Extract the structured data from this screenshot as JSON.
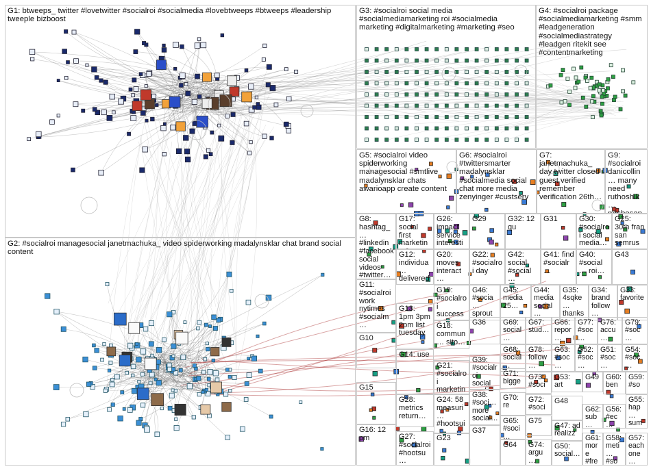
{
  "groups": [
    {
      "id": "G1",
      "text": "G1: btweeps_ twitter #lovetwitter #socialroi #socialmedia #lovebtweeps #btweeps #leadership tweeple bizboost"
    },
    {
      "id": "G2",
      "text": "G2: #socialroi managesocial janetmachuka_ video spiderworking madalynsklar chat brand social content"
    },
    {
      "id": "G3",
      "text": "G3: #socialroi social media #socialmediamarketing roi #socialmedia marketing #digitalmarketing #marketing #seo"
    },
    {
      "id": "G4",
      "text": "G4: #socialroi package #socialmediamarketing #smm #leadgeneration #socialmediastrategy #leadgen ritekit see #contentmarketing"
    },
    {
      "id": "G5",
      "text": "G5: #socialroi video spiderworking managesocial #smtlive madalynsklar chats awarioapp create content"
    },
    {
      "id": "G6",
      "text": "G6: #socialroi #twittersmarter madalynsklar #socialmedia social chat more media zenyinger #custserv"
    },
    {
      "id": "G7",
      "text": "G7: janetmachuka_ day twitter closed guest verified remember verification 26th…"
    },
    {
      "id": "G9",
      "text": "G9: #socialroi danicollin… many need ruthoshik… mrsbosan…"
    },
    {
      "id": "G8",
      "text": "G8: hashtag_… #linkedin #facebook social videos #twitter…"
    },
    {
      "id": "G17",
      "text": "G17: social first marketing 2x…"
    },
    {
      "id": "G26",
      "text": "G26: impact service interesti…"
    },
    {
      "id": "G29",
      "text": "G29"
    },
    {
      "id": "G32",
      "text": "G32: 12 qu"
    },
    {
      "id": "G31",
      "text": "G31"
    },
    {
      "id": "G30",
      "text": "G30: #socialroi social media…"
    },
    {
      "id": "G25",
      "text": "G25: 30th fran san semrus…"
    },
    {
      "id": "G12",
      "text": "G12: individua… delivered support"
    },
    {
      "id": "G20",
      "text": "G20: moves interact…"
    },
    {
      "id": "G22",
      "text": "G22: #socialroi day"
    },
    {
      "id": "G42",
      "text": "G42: social #social…"
    },
    {
      "id": "G41",
      "text": "G41: find #socialr…"
    },
    {
      "id": "G40",
      "text": "G40: #social… roi…"
    },
    {
      "id": "G43",
      "text": "G43"
    },
    {
      "id": "G11",
      "text": "G11: #socialroi work nytimes #socialm…"
    },
    {
      "id": "G19",
      "text": "G19: #socialroi success…"
    },
    {
      "id": "G46",
      "text": "G46: #socia… sprout…"
    },
    {
      "id": "G45",
      "text": "G45: media 25…"
    },
    {
      "id": "G44",
      "text": "G44: media social…"
    },
    {
      "id": "G35",
      "text": "G35: 4sqke… thanks…"
    },
    {
      "id": "G34",
      "text": "G34: brand follow…"
    },
    {
      "id": "G33",
      "text": "G33: favorite"
    },
    {
      "id": "G13",
      "text": "G13: 1pm 3pm 2pm list tuesday"
    },
    {
      "id": "G18",
      "text": "G18: commun… sito…"
    },
    {
      "id": "G36",
      "text": "G36"
    },
    {
      "id": "G69",
      "text": "G69: social…"
    },
    {
      "id": "G67",
      "text": "G67: stud…"
    },
    {
      "id": "G66",
      "text": "G66: repor…"
    },
    {
      "id": "G77",
      "text": "G77: #soc…"
    },
    {
      "id": "G76",
      "text": "G76: accu…"
    },
    {
      "id": "G79",
      "text": "G79: #soc…"
    },
    {
      "id": "G10",
      "text": "G10"
    },
    {
      "id": "G68",
      "text": "G68: social…"
    },
    {
      "id": "G78",
      "text": "G78: follow…"
    },
    {
      "id": "G63",
      "text": "G63: #soc…"
    },
    {
      "id": "G52",
      "text": "G52: #soc…"
    },
    {
      "id": "G51",
      "text": "G51: #soc…"
    },
    {
      "id": "G54",
      "text": "G54: #soc…"
    },
    {
      "id": "G14",
      "text": "G14: use"
    },
    {
      "id": "G21",
      "text": "G21: #socialroi marketin…"
    },
    {
      "id": "G39",
      "text": "G39: #socialroi social media…"
    },
    {
      "id": "G71",
      "text": "G71: bigge…"
    },
    {
      "id": "G73",
      "text": "G73: #soci…"
    },
    {
      "id": "G53",
      "text": "G53: art"
    },
    {
      "id": "G49",
      "text": "G49"
    },
    {
      "id": "G60",
      "text": "G60: ben… ben…"
    },
    {
      "id": "G59",
      "text": "G59: #so… #so…"
    },
    {
      "id": "G15",
      "text": "G15"
    },
    {
      "id": "G28",
      "text": "G28: metrics return…"
    },
    {
      "id": "G24",
      "text": "G24: 58 measuri… #hootsui…"
    },
    {
      "id": "G38",
      "text": "G38: #soci… more social…"
    },
    {
      "id": "G70",
      "text": "G70: re"
    },
    {
      "id": "G72",
      "text": "G72: #soci…"
    },
    {
      "id": "G48",
      "text": "G48"
    },
    {
      "id": "G62",
      "text": "G62: sub… high…"
    },
    {
      "id": "G56",
      "text": "G56: #ec… bon…"
    },
    {
      "id": "G55",
      "text": "G55: hap… sum…"
    },
    {
      "id": "G65",
      "text": "G65: #soci…"
    },
    {
      "id": "G75",
      "text": "G75"
    },
    {
      "id": "G47",
      "text": "G47: ad realizz…"
    },
    {
      "id": "G16",
      "text": "G16: 12 pm"
    },
    {
      "id": "G27",
      "text": "G27: #socialroi #hootsu…"
    },
    {
      "id": "G23",
      "text": "G23"
    },
    {
      "id": "G37",
      "text": "G37"
    },
    {
      "id": "G64",
      "text": "G64"
    },
    {
      "id": "G74",
      "text": "G74: argu…"
    },
    {
      "id": "G50",
      "text": "G50: social…"
    },
    {
      "id": "G61",
      "text": "G61: more #fre…"
    },
    {
      "id": "G58",
      "text": "G58: meti… #so…"
    },
    {
      "id": "G57",
      "text": "G57: each one…"
    }
  ]
}
